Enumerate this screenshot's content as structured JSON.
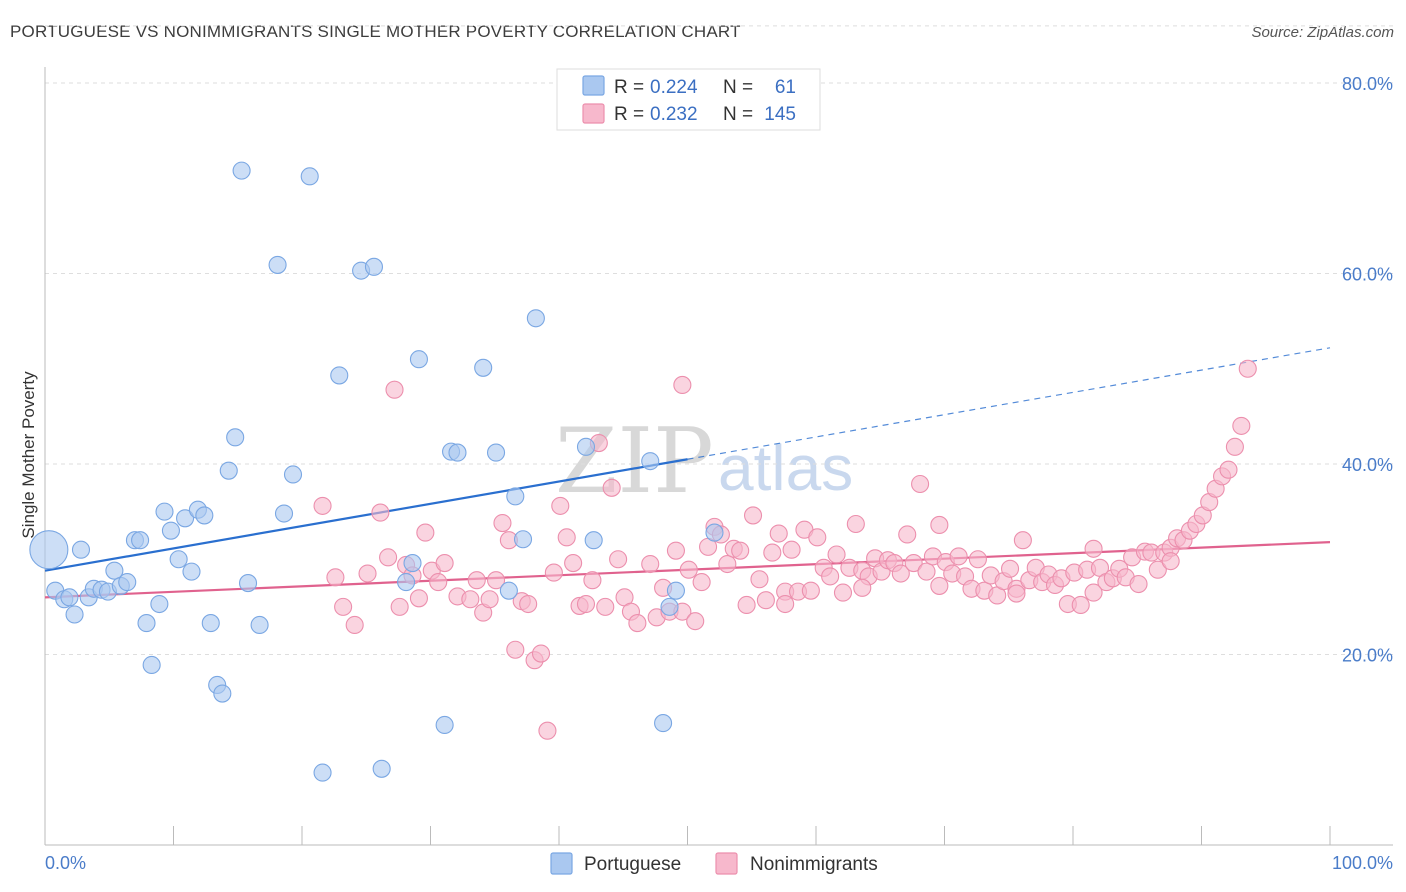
{
  "title": "PORTUGUESE VS NONIMMIGRANTS SINGLE MOTHER POVERTY CORRELATION CHART",
  "source": "Source: ZipAtlas.com",
  "watermark": {
    "zip": "ZIP",
    "atlas": "atlas"
  },
  "legend_top": [
    {
      "r_label": "R =",
      "r_value": "0.224",
      "n_label": "N =",
      "n_value": "61"
    },
    {
      "r_label": "R =",
      "r_value": "0.232",
      "n_label": "N =",
      "n_value": "145"
    }
  ],
  "chart_data": {
    "type": "scatter",
    "title": "PORTUGUESE VS NONIMMIGRANTS SINGLE MOTHER POVERTY CORRELATION CHART",
    "xlabel": "",
    "ylabel": "Single Mother Poverty",
    "xlim": [
      0,
      100
    ],
    "ylim": [
      0,
      86
    ],
    "x_tick_labels": [
      "0.0%",
      "100.0%"
    ],
    "y_ticks": [
      20,
      40,
      60,
      80
    ],
    "y_tick_labels": [
      "20.0%",
      "40.0%",
      "60.0%",
      "80.0%"
    ],
    "grid": "horizontal dashed",
    "legend_position": "top-center",
    "colors": {
      "portuguese_fill": "#aac8f0",
      "portuguese_stroke": "#7aa7e3",
      "portuguese_line": "#2a6fcf",
      "nonimmigrants_fill": "#f7b8cc",
      "nonimmigrants_stroke": "#ec8fad",
      "nonimmigrants_line": "#e0628e"
    },
    "series": [
      {
        "name": "Portuguese",
        "r": 0.224,
        "n": 61,
        "trend": {
          "x0": 0,
          "y0": 28.8,
          "x1": 50,
          "y1": 40.5,
          "x_ext": 100,
          "y_ext": 52.2
        },
        "points": [
          [
            0.3,
            31,
            "big"
          ],
          [
            0.8,
            26.7
          ],
          [
            1.5,
            25.8
          ],
          [
            1.9,
            26
          ],
          [
            2.3,
            24.2
          ],
          [
            2.8,
            31
          ],
          [
            3.4,
            26
          ],
          [
            3.8,
            26.9
          ],
          [
            4.4,
            26.8
          ],
          [
            4.9,
            26.6
          ],
          [
            5.4,
            28.8
          ],
          [
            5.9,
            27.2
          ],
          [
            6.4,
            27.6
          ],
          [
            7,
            32
          ],
          [
            7.4,
            32
          ],
          [
            7.9,
            23.3
          ],
          [
            8.3,
            18.9
          ],
          [
            8.9,
            25.3
          ],
          [
            9.3,
            35
          ],
          [
            9.8,
            33
          ],
          [
            10.4,
            30
          ],
          [
            10.9,
            34.3
          ],
          [
            11.4,
            28.7
          ],
          [
            11.9,
            35.2
          ],
          [
            12.4,
            34.6
          ],
          [
            12.9,
            23.3
          ],
          [
            13.4,
            16.8
          ],
          [
            13.8,
            15.9
          ],
          [
            14.3,
            39.3
          ],
          [
            14.8,
            42.8
          ],
          [
            15.3,
            70.8
          ],
          [
            15.8,
            27.5
          ],
          [
            16.7,
            23.1
          ],
          [
            18.1,
            60.9
          ],
          [
            18.6,
            34.8
          ],
          [
            19.3,
            38.9
          ],
          [
            20.6,
            70.2
          ],
          [
            21.6,
            7.6
          ],
          [
            22.9,
            49.3
          ],
          [
            24.6,
            60.3
          ],
          [
            25.6,
            60.7
          ],
          [
            26.2,
            8
          ],
          [
            28.1,
            27.6
          ],
          [
            28.6,
            29.6
          ],
          [
            29.1,
            51
          ],
          [
            31.1,
            12.6
          ],
          [
            31.6,
            41.3
          ],
          [
            32.1,
            41.2
          ],
          [
            34.1,
            50.1
          ],
          [
            35.1,
            41.2
          ],
          [
            36.1,
            26.7
          ],
          [
            36.6,
            36.6
          ],
          [
            37.2,
            32.1
          ],
          [
            38.2,
            55.3
          ],
          [
            42.1,
            41.8
          ],
          [
            42.7,
            32
          ],
          [
            47.1,
            40.3
          ],
          [
            48.1,
            12.8
          ],
          [
            48.6,
            25
          ],
          [
            49.1,
            26.7
          ],
          [
            52.1,
            32.8
          ]
        ]
      },
      {
        "name": "Nonimmigrants",
        "r": 0.232,
        "n": 145,
        "trend": {
          "x0": 0,
          "y0": 26,
          "x1": 100,
          "y1": 31.8
        },
        "points": [
          [
            21.6,
            35.6
          ],
          [
            22.6,
            28.1
          ],
          [
            23.2,
            25
          ],
          [
            24.1,
            23.1
          ],
          [
            25.1,
            28.5
          ],
          [
            26.1,
            34.9
          ],
          [
            26.7,
            30.2
          ],
          [
            27.2,
            47.8
          ],
          [
            28.1,
            29.4
          ],
          [
            28.6,
            28.3
          ],
          [
            29.1,
            25.9
          ],
          [
            29.6,
            32.8
          ],
          [
            30.1,
            28.8
          ],
          [
            30.6,
            27.6
          ],
          [
            31.1,
            29.6
          ],
          [
            32.1,
            26.1
          ],
          [
            33.1,
            25.8
          ],
          [
            33.6,
            27.8
          ],
          [
            34.1,
            24.4
          ],
          [
            34.6,
            25.8
          ],
          [
            35.1,
            27.8
          ],
          [
            35.6,
            33.8
          ],
          [
            36.1,
            32
          ],
          [
            36.6,
            20.5
          ],
          [
            37.1,
            25.6
          ],
          [
            37.6,
            25.3
          ],
          [
            38.1,
            19.4
          ],
          [
            38.6,
            20.1
          ],
          [
            39.1,
            12
          ],
          [
            39.6,
            28.6
          ],
          [
            40.1,
            35.6
          ],
          [
            40.6,
            32.3
          ],
          [
            41.1,
            29.6
          ],
          [
            41.6,
            25.1
          ],
          [
            42.1,
            25.3
          ],
          [
            42.6,
            27.8
          ],
          [
            43.1,
            42.2
          ],
          [
            43.6,
            25
          ],
          [
            44.1,
            37.5
          ],
          [
            44.6,
            30
          ],
          [
            45.1,
            26
          ],
          [
            45.6,
            24.5
          ],
          [
            46.1,
            23.3
          ],
          [
            47.1,
            29.5
          ],
          [
            47.6,
            23.9
          ],
          [
            48.1,
            27
          ],
          [
            48.6,
            24.5
          ],
          [
            49.1,
            30.9
          ],
          [
            49.6,
            24.5
          ],
          [
            50.1,
            28.9
          ],
          [
            50.6,
            23.5
          ],
          [
            51.1,
            27.6
          ],
          [
            51.6,
            31.3
          ],
          [
            52.1,
            33.4
          ],
          [
            52.6,
            32.6
          ],
          [
            53.1,
            29.5
          ],
          [
            53.6,
            31.1
          ],
          [
            54.1,
            30.9
          ],
          [
            54.6,
            25.2
          ],
          [
            55.1,
            34.6
          ],
          [
            55.6,
            27.9
          ],
          [
            56.1,
            25.7
          ],
          [
            56.6,
            30.7
          ],
          [
            57.1,
            32.7
          ],
          [
            57.6,
            26.6
          ],
          [
            58.1,
            31
          ],
          [
            58.6,
            26.6
          ],
          [
            59.1,
            33.1
          ],
          [
            59.6,
            26.7
          ],
          [
            60.1,
            32.3
          ],
          [
            60.6,
            29.1
          ],
          [
            61.1,
            28.2
          ],
          [
            61.6,
            30.5
          ],
          [
            62.1,
            26.5
          ],
          [
            62.6,
            29.1
          ],
          [
            63.1,
            33.7
          ],
          [
            63.6,
            28.8
          ],
          [
            64.1,
            28.2
          ],
          [
            64.6,
            30.1
          ],
          [
            65.1,
            28.7
          ],
          [
            65.6,
            29.9
          ],
          [
            66.1,
            29.6
          ],
          [
            66.6,
            28.5
          ],
          [
            67.1,
            32.6
          ],
          [
            67.6,
            29.6
          ],
          [
            68.1,
            37.9
          ],
          [
            68.6,
            28.7
          ],
          [
            69.1,
            30.3
          ],
          [
            69.6,
            33.6
          ],
          [
            70.1,
            29.7
          ],
          [
            70.6,
            28.5
          ],
          [
            71.1,
            30.3
          ],
          [
            71.6,
            28.2
          ],
          [
            72.1,
            26.9
          ],
          [
            72.6,
            30
          ],
          [
            73.1,
            26.7
          ],
          [
            73.6,
            28.3
          ],
          [
            74.1,
            26.2
          ],
          [
            74.6,
            27.7
          ],
          [
            75.1,
            29
          ],
          [
            75.6,
            26.9
          ],
          [
            76.1,
            32
          ],
          [
            76.6,
            27.8
          ],
          [
            77.1,
            29.1
          ],
          [
            77.6,
            27.6
          ],
          [
            78.1,
            28.4
          ],
          [
            78.6,
            27.3
          ],
          [
            79.1,
            28
          ],
          [
            79.6,
            25.3
          ],
          [
            80.1,
            28.6
          ],
          [
            80.6,
            25.2
          ],
          [
            81.1,
            28.9
          ],
          [
            81.6,
            31.1
          ],
          [
            82.1,
            29.1
          ],
          [
            82.6,
            27.6
          ],
          [
            83.1,
            28
          ],
          [
            83.6,
            29
          ],
          [
            84.1,
            28.1
          ],
          [
            84.6,
            30.2
          ],
          [
            85.1,
            27.4
          ],
          [
            85.6,
            30.8
          ],
          [
            86.1,
            30.7
          ],
          [
            86.6,
            28.9
          ],
          [
            87.1,
            30.7
          ],
          [
            87.6,
            31.2
          ],
          [
            88.1,
            32.2
          ],
          [
            88.6,
            32
          ],
          [
            89.1,
            33
          ],
          [
            89.6,
            33.7
          ],
          [
            90.1,
            34.6
          ],
          [
            90.6,
            36
          ],
          [
            91.1,
            37.4
          ],
          [
            91.6,
            38.7
          ],
          [
            92.1,
            39.4
          ],
          [
            92.6,
            41.8
          ],
          [
            93.1,
            44
          ],
          [
            93.6,
            50
          ],
          [
            49.6,
            48.3
          ],
          [
            27.6,
            25
          ],
          [
            57.6,
            25.3
          ],
          [
            63.6,
            27
          ],
          [
            69.6,
            27.2
          ],
          [
            75.6,
            26.4
          ],
          [
            81.6,
            26.5
          ],
          [
            87.6,
            29.8
          ]
        ]
      }
    ]
  },
  "legend_bottom": [
    "Portuguese",
    "Nonimmigrants"
  ]
}
